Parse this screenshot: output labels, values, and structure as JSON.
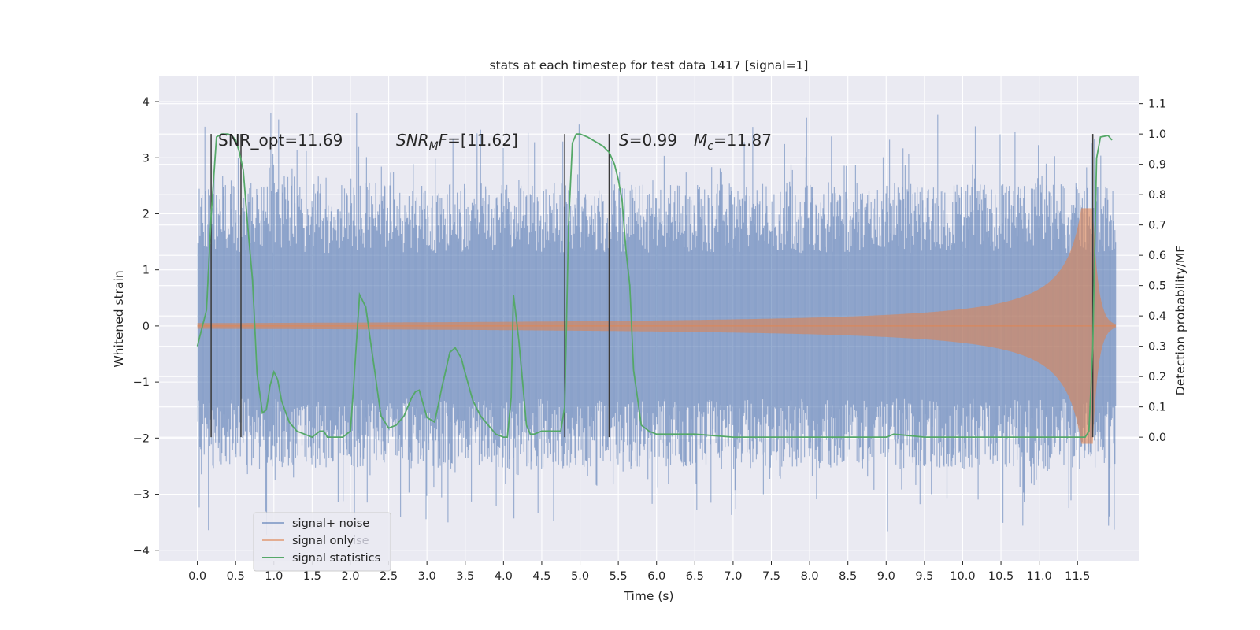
{
  "chart_data": {
    "type": "line",
    "title": "stats at each timestep for test data 1417 [signal=1]",
    "xlabel": "Time (s)",
    "ylabel": "Whitened strain",
    "ylabel_right": "Detection probability/MF",
    "xlim": [
      -0.5,
      12.3
    ],
    "ylim": [
      -4.2,
      4.45
    ],
    "ylim_right": [
      -0.41,
      1.19
    ],
    "x_ticks": [
      0.0,
      0.5,
      1.0,
      1.5,
      2.0,
      2.5,
      3.0,
      3.5,
      4.0,
      4.5,
      5.0,
      5.5,
      6.0,
      6.5,
      7.0,
      7.5,
      8.0,
      8.5,
      9.0,
      9.5,
      10.0,
      10.5,
      11.0,
      11.5
    ],
    "x_tick_labels": [
      "0.0",
      "0.5",
      "1.0",
      "1.5",
      "2.0",
      "2.5",
      "3.0",
      "3.5",
      "4.0",
      "4.5",
      "5.0",
      "5.5",
      "6.0",
      "6.5",
      "7.0",
      "7.5",
      "8.0",
      "8.5",
      "9.0",
      "9.5",
      "10.0",
      "10.5",
      "11.0",
      "11.5"
    ],
    "y_ticks": [
      -4,
      -3,
      -2,
      -1,
      0,
      1,
      2,
      3,
      4
    ],
    "y_tick_labels": [
      "−4",
      "−3",
      "−2",
      "−1",
      "0",
      "1",
      "2",
      "3",
      "4"
    ],
    "y_ticks_right": [
      0.0,
      0.1,
      0.2,
      0.3,
      0.4,
      0.5,
      0.6,
      0.7,
      0.8,
      0.9,
      1.0,
      1.1
    ],
    "y_tick_labels_right": [
      "0.0",
      "0.1",
      "0.2",
      "0.3",
      "0.4",
      "0.5",
      "0.6",
      "0.7",
      "0.8",
      "0.9",
      "1.0",
      "1.1"
    ],
    "grid": true,
    "legend_position": "lower-left",
    "series": [
      {
        "name": "signal+ noise",
        "color": "#4c72b0",
        "kind": "dense noise, duration 12 s, band approx ±1.35 to ±2.6, peaks to about ±4.1"
      },
      {
        "name": "signal only",
        "color": "#dd8452",
        "kind": "chirp, amplitude near 0 until ~7.5 s, growing to ~±2.0 at 11.7 s, ends near 12.0 s"
      },
      {
        "name": "signal statistics",
        "color": "#55a868",
        "x": [
          0.0,
          0.12,
          0.18,
          0.25,
          0.32,
          0.4,
          0.45,
          0.5,
          0.55,
          0.6,
          0.65,
          0.72,
          0.78,
          0.85,
          0.9,
          0.95,
          1.0,
          1.05,
          1.1,
          1.2,
          1.3,
          1.4,
          1.5,
          1.6,
          1.65,
          1.7,
          1.8,
          1.9,
          2.0,
          2.05,
          2.12,
          2.2,
          2.3,
          2.4,
          2.5,
          2.6,
          2.7,
          2.8,
          2.85,
          2.9,
          3.0,
          3.1,
          3.2,
          3.3,
          3.37,
          3.45,
          3.5,
          3.6,
          3.7,
          3.8,
          3.9,
          4.0,
          4.05,
          4.1,
          4.13,
          4.2,
          4.3,
          4.35,
          4.4,
          4.5,
          4.6,
          4.7,
          4.75,
          4.8,
          4.85,
          4.9,
          4.95,
          5.0,
          5.05,
          5.1,
          5.2,
          5.3,
          5.38,
          5.45,
          5.5,
          5.55,
          5.6,
          5.65,
          5.7,
          5.8,
          5.9,
          6.0,
          6.5,
          7.0,
          7.3,
          7.5,
          8.0,
          8.5,
          9.0,
          9.1,
          9.3,
          9.5,
          10.0,
          10.5,
          10.8,
          11.0,
          11.3,
          11.6,
          11.65,
          11.7,
          11.75,
          11.8,
          11.9,
          11.95
        ],
        "y": [
          0.3,
          0.42,
          0.73,
          0.99,
          1.0,
          1.0,
          0.995,
          0.98,
          0.94,
          0.88,
          0.72,
          0.52,
          0.21,
          0.08,
          0.09,
          0.17,
          0.215,
          0.19,
          0.12,
          0.05,
          0.02,
          0.01,
          0.0,
          0.02,
          0.02,
          0.0,
          0.0,
          0.0,
          0.02,
          0.2,
          0.47,
          0.43,
          0.25,
          0.07,
          0.03,
          0.04,
          0.07,
          0.13,
          0.15,
          0.155,
          0.065,
          0.05,
          0.17,
          0.28,
          0.295,
          0.26,
          0.21,
          0.12,
          0.07,
          0.04,
          0.01,
          0.0,
          0.0,
          0.13,
          0.47,
          0.32,
          0.04,
          0.01,
          0.01,
          0.02,
          0.02,
          0.02,
          0.02,
          0.1,
          0.7,
          0.97,
          1.0,
          1.0,
          0.995,
          0.99,
          0.975,
          0.96,
          0.94,
          0.9,
          0.85,
          0.78,
          0.62,
          0.5,
          0.22,
          0.04,
          0.02,
          0.01,
          0.01,
          0.0,
          0.0,
          0.0,
          0.0,
          0.0,
          0.0,
          0.01,
          0.005,
          0.0,
          0.0,
          0.0,
          0.0,
          0.0,
          0.0,
          0.0,
          0.02,
          0.3,
          0.92,
          0.99,
          0.995,
          0.98
        ]
      }
    ],
    "vlines_x": [
      0.18,
      0.57,
      4.8,
      5.38,
      11.7
    ],
    "vline_color": "#3a3a3a",
    "annotations": {
      "snr_opt": "SNR_opt=11.69",
      "snr_mf_base": "SNR",
      "snr_mf_sub": "M",
      "snr_mf_italic": "F",
      "snr_mf_value": "=[11.62]",
      "s_symbol": "S",
      "s_value": "=0.99",
      "mc_base": "M",
      "mc_sub": "c",
      "mc_value": "=11.87"
    },
    "legend_entries": [
      "signal+ noise",
      "signal only",
      "signal statistics"
    ],
    "legend_ghost_text": "ise"
  }
}
